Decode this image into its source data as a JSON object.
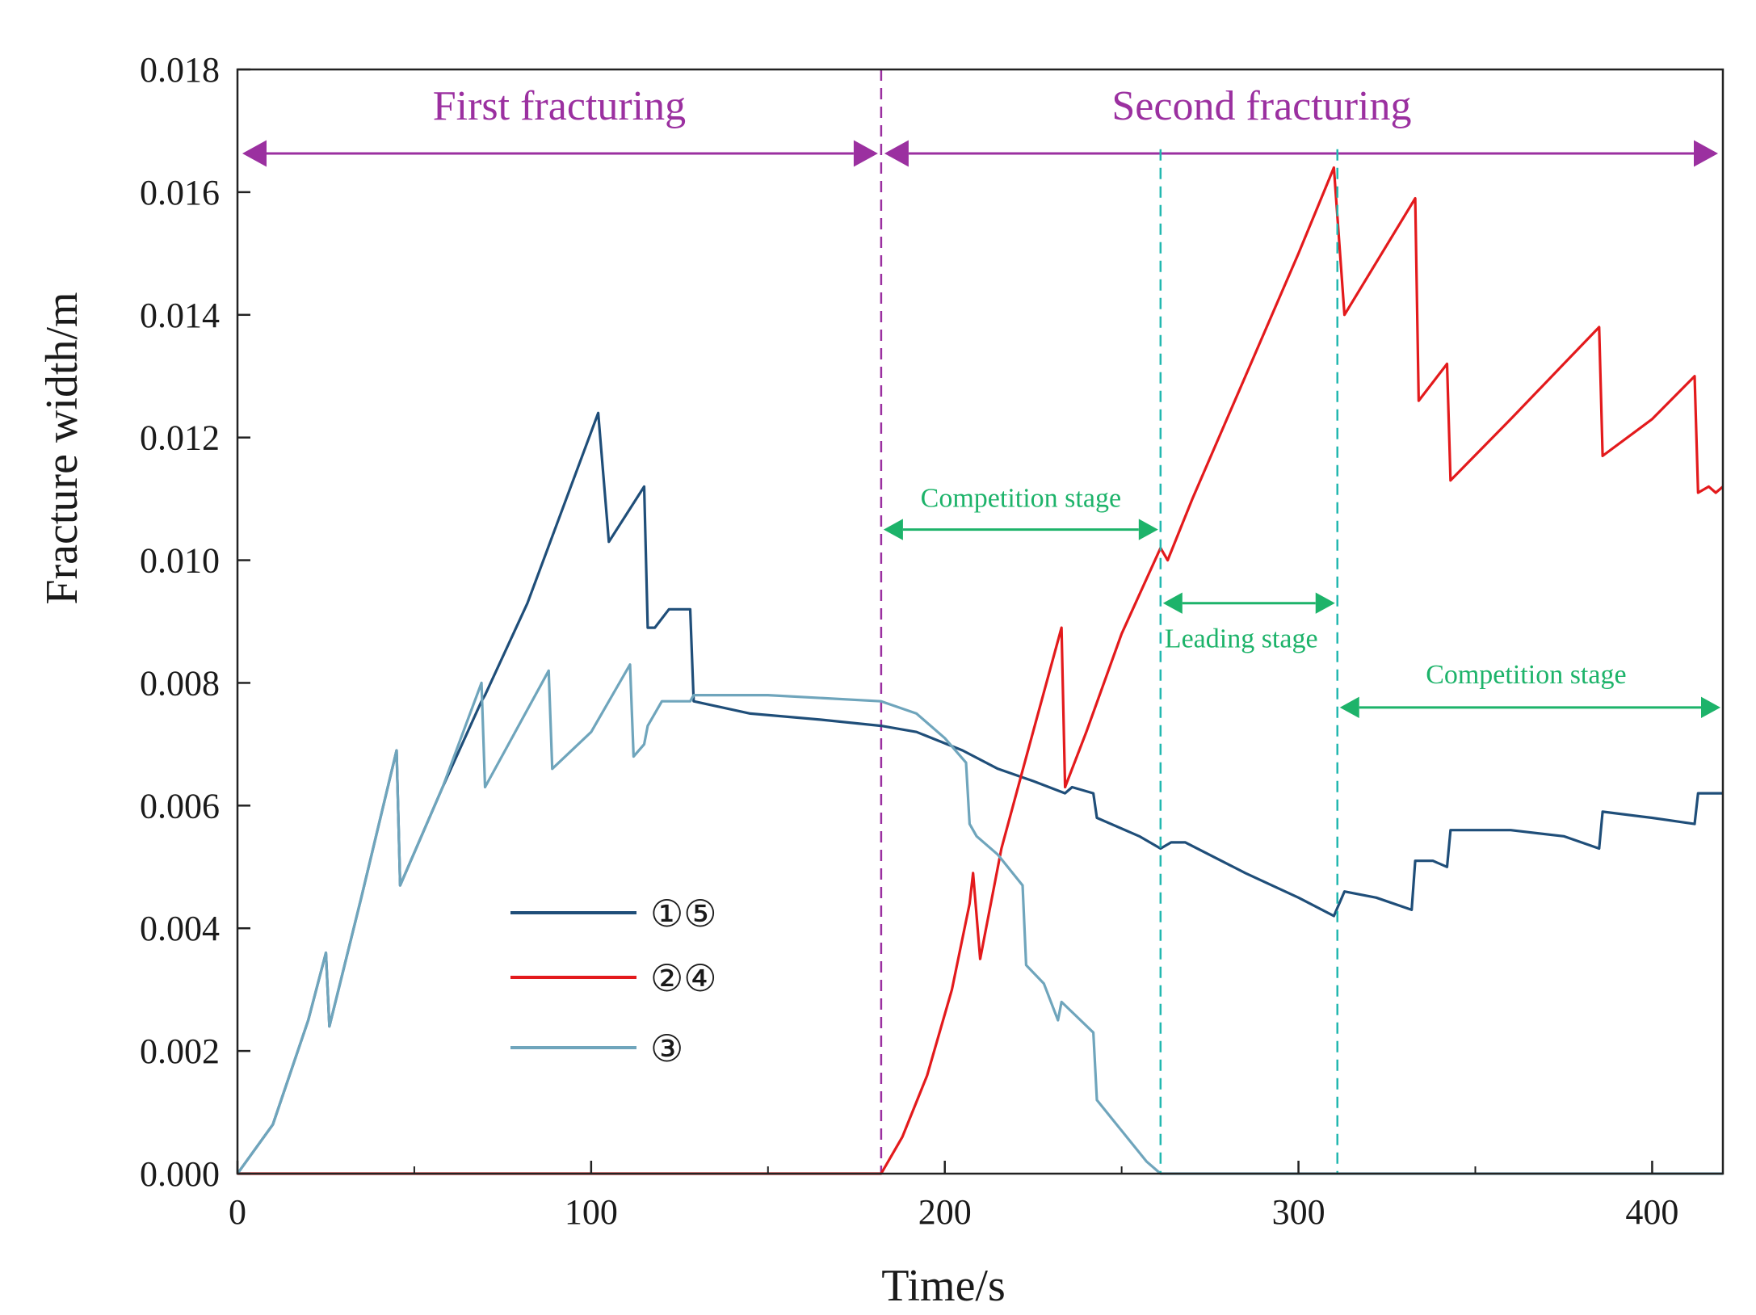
{
  "chart_data": {
    "type": "line",
    "title": "",
    "xlabel": "Time/s",
    "ylabel": "Fracture width/m",
    "xlim": [
      0,
      420
    ],
    "ylim": [
      0,
      0.018
    ],
    "x_ticks": [
      {
        "value": 0,
        "label": "0"
      },
      {
        "value": 100,
        "label": "100"
      },
      {
        "value": 200,
        "label": "200"
      },
      {
        "value": 300,
        "label": "300"
      },
      {
        "value": 400,
        "label": "400"
      }
    ],
    "x_minor_ticks": [
      50,
      150,
      250,
      350
    ],
    "y_ticks": [
      {
        "value": 0,
        "label": "0.000"
      },
      {
        "value": 0.002,
        "label": "0.002"
      },
      {
        "value": 0.004,
        "label": "0.004"
      },
      {
        "value": 0.006,
        "label": "0.006"
      },
      {
        "value": 0.008,
        "label": "0.008"
      },
      {
        "value": 0.01,
        "label": "0.010"
      },
      {
        "value": 0.012,
        "label": "0.012"
      },
      {
        "value": 0.014,
        "label": "0.014"
      },
      {
        "value": 0.016,
        "label": "0.016"
      },
      {
        "value": 0.018,
        "label": "0.018"
      }
    ],
    "series": [
      {
        "name": "①⑤",
        "color": "#1f4e79",
        "points": [
          [
            0,
            0
          ],
          [
            10,
            0.0008
          ],
          [
            20,
            0.0025
          ],
          [
            25,
            0.0036
          ],
          [
            26,
            0.0024
          ],
          [
            35,
            0.0045
          ],
          [
            45,
            0.0069
          ],
          [
            46,
            0.0047
          ],
          [
            58,
            0.0063
          ],
          [
            69,
            0.0077
          ],
          [
            70,
            0.0078
          ],
          [
            82,
            0.0093
          ],
          [
            102,
            0.0124
          ],
          [
            105,
            0.0103
          ],
          [
            115,
            0.0112
          ],
          [
            116,
            0.0089
          ],
          [
            118,
            0.0089
          ],
          [
            122,
            0.0092
          ],
          [
            127,
            0.0092
          ],
          [
            128,
            0.0092
          ],
          [
            129,
            0.0077
          ],
          [
            145,
            0.0075
          ],
          [
            165,
            0.0074
          ],
          [
            182,
            0.0073
          ],
          [
            192,
            0.0072
          ],
          [
            205,
            0.0069
          ],
          [
            215,
            0.0066
          ],
          [
            225,
            0.0064
          ],
          [
            234,
            0.0062
          ],
          [
            236,
            0.0063
          ],
          [
            242,
            0.0062
          ],
          [
            243,
            0.0058
          ],
          [
            255,
            0.0055
          ],
          [
            261,
            0.0053
          ],
          [
            264,
            0.0054
          ],
          [
            268,
            0.0054
          ],
          [
            285,
            0.0049
          ],
          [
            300,
            0.0045
          ],
          [
            310,
            0.0042
          ],
          [
            313,
            0.0046
          ],
          [
            322,
            0.0045
          ],
          [
            332,
            0.0043
          ],
          [
            333,
            0.0051
          ],
          [
            338,
            0.0051
          ],
          [
            342,
            0.005
          ],
          [
            343,
            0.0056
          ],
          [
            360,
            0.0056
          ],
          [
            375,
            0.0055
          ],
          [
            385,
            0.0053
          ],
          [
            386,
            0.0059
          ],
          [
            400,
            0.0058
          ],
          [
            412,
            0.0057
          ],
          [
            413,
            0.0062
          ],
          [
            420,
            0.0062
          ]
        ]
      },
      {
        "name": "②④",
        "color": "#e31a1c",
        "points": [
          [
            0,
            0
          ],
          [
            182,
            0
          ],
          [
            188,
            0.0006
          ],
          [
            195,
            0.0016
          ],
          [
            202,
            0.003
          ],
          [
            207,
            0.0044
          ],
          [
            208,
            0.0049
          ],
          [
            210,
            0.0035
          ],
          [
            216,
            0.0053
          ],
          [
            224,
            0.007
          ],
          [
            233,
            0.0089
          ],
          [
            234,
            0.0063
          ],
          [
            240,
            0.0072
          ],
          [
            250,
            0.0088
          ],
          [
            261,
            0.0102
          ],
          [
            263,
            0.01
          ],
          [
            270,
            0.011
          ],
          [
            285,
            0.013
          ],
          [
            300,
            0.015
          ],
          [
            310,
            0.0164
          ],
          [
            313,
            0.014
          ],
          [
            333,
            0.0159
          ],
          [
            334,
            0.0126
          ],
          [
            342,
            0.0132
          ],
          [
            343,
            0.0113
          ],
          [
            360,
            0.0123
          ],
          [
            375,
            0.0132
          ],
          [
            385,
            0.0138
          ],
          [
            386,
            0.0117
          ],
          [
            400,
            0.0123
          ],
          [
            412,
            0.013
          ],
          [
            413,
            0.0111
          ],
          [
            416,
            0.0112
          ],
          [
            418,
            0.0111
          ],
          [
            420,
            0.0112
          ]
        ]
      },
      {
        "name": "③",
        "color": "#6fa5bc",
        "points": [
          [
            0,
            0
          ],
          [
            10,
            0.0008
          ],
          [
            20,
            0.0025
          ],
          [
            25,
            0.0036
          ],
          [
            26,
            0.0024
          ],
          [
            35,
            0.0045
          ],
          [
            45,
            0.0069
          ],
          [
            46,
            0.0047
          ],
          [
            58,
            0.0063
          ],
          [
            69,
            0.008
          ],
          [
            70,
            0.0063
          ],
          [
            88,
            0.0082
          ],
          [
            89,
            0.0066
          ],
          [
            100,
            0.0072
          ],
          [
            111,
            0.0083
          ],
          [
            112,
            0.0068
          ],
          [
            115,
            0.007
          ],
          [
            116,
            0.0073
          ],
          [
            120,
            0.0077
          ],
          [
            128,
            0.0077
          ],
          [
            129,
            0.0078
          ],
          [
            150,
            0.0078
          ],
          [
            182,
            0.0077
          ],
          [
            192,
            0.0075
          ],
          [
            200,
            0.0071
          ],
          [
            206,
            0.0067
          ],
          [
            207,
            0.0057
          ],
          [
            209,
            0.0055
          ],
          [
            215,
            0.0052
          ],
          [
            222,
            0.0047
          ],
          [
            223,
            0.0034
          ],
          [
            228,
            0.0031
          ],
          [
            232,
            0.0025
          ],
          [
            233,
            0.0028
          ],
          [
            242,
            0.0023
          ],
          [
            243,
            0.0012
          ],
          [
            250,
            0.0007
          ],
          [
            257,
            0.0002
          ],
          [
            261,
            0
          ],
          [
            420,
            0
          ]
        ]
      }
    ],
    "markers": {
      "phase_divider_x": 182,
      "stage_dividers_x": [
        261,
        311
      ]
    },
    "annotations": {
      "first_phase": {
        "text": "First fracturing",
        "from": 0,
        "to": 182
      },
      "second_phase": {
        "text": "Second fracturing",
        "from": 182,
        "to": 420
      },
      "stages": [
        {
          "text": "Competition stage",
          "from": 182,
          "to": 261,
          "y": 0.0105
        },
        {
          "text": "Leading stage",
          "from": 261,
          "to": 311,
          "y": 0.0093
        },
        {
          "text": "Competition stage",
          "from": 311,
          "to": 420,
          "y": 0.0076
        }
      ]
    },
    "colors": {
      "phase": "#9b30a0",
      "stage": "#1db36a",
      "stage_divider": "#22b8b0"
    },
    "grid": false,
    "legend_position": "lower-left"
  }
}
